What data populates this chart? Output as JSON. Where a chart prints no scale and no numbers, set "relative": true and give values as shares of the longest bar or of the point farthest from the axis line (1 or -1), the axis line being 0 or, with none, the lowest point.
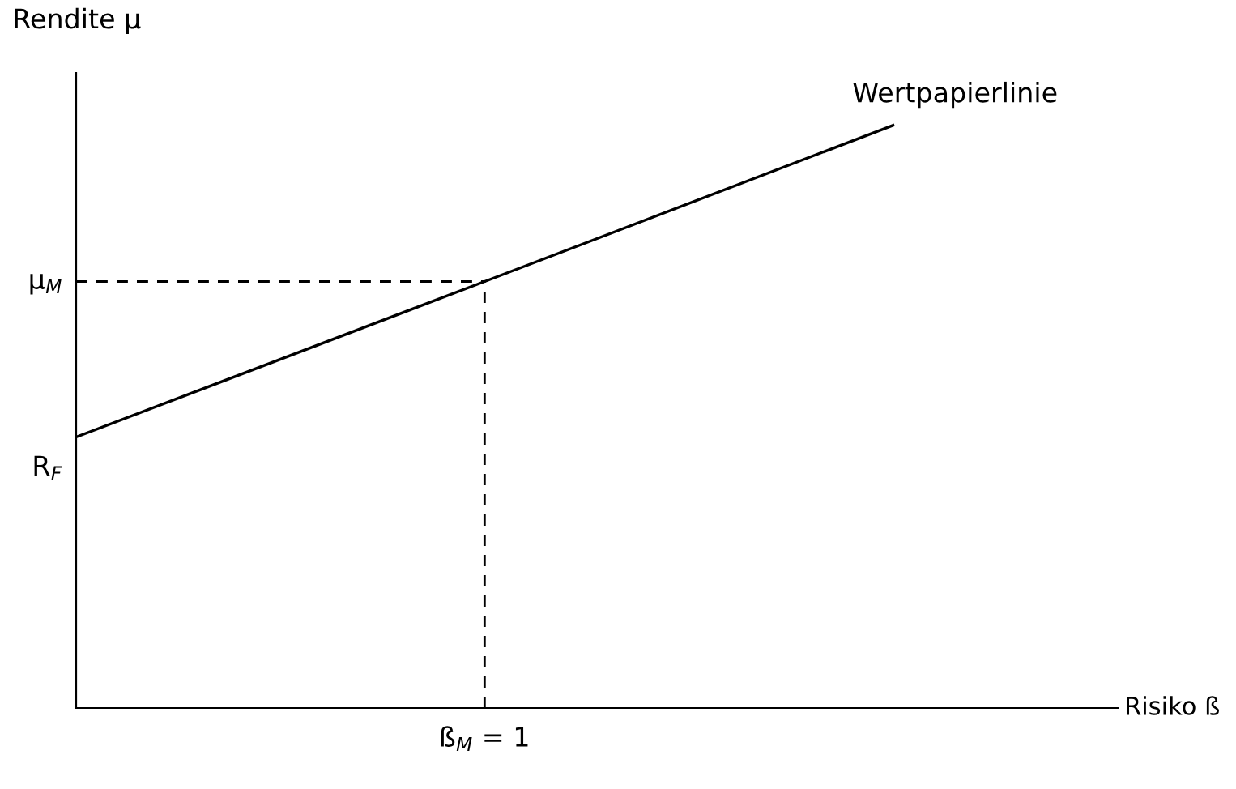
{
  "chart_data": {
    "type": "line",
    "relative": true,
    "xlabel": "Risiko ß",
    "ylabel": "Rendite μ",
    "categories": [
      null,
      null,
      null
    ],
    "series": [
      {
        "name": "Wertpapierlinie",
        "color": "#000000",
        "values": [
          0.465,
          0.732,
          1
        ]
      }
    ],
    "ref_lines": [
      {
        "axis": "y",
        "value": 0.732,
        "label": "μ$_{M}$",
        "line_style": "dashed",
        "color": "#000000"
      }
    ],
    "annotations": [
      "R$_{F}$",
      "ß$_{M}$ = 1"
    ]
  }
}
